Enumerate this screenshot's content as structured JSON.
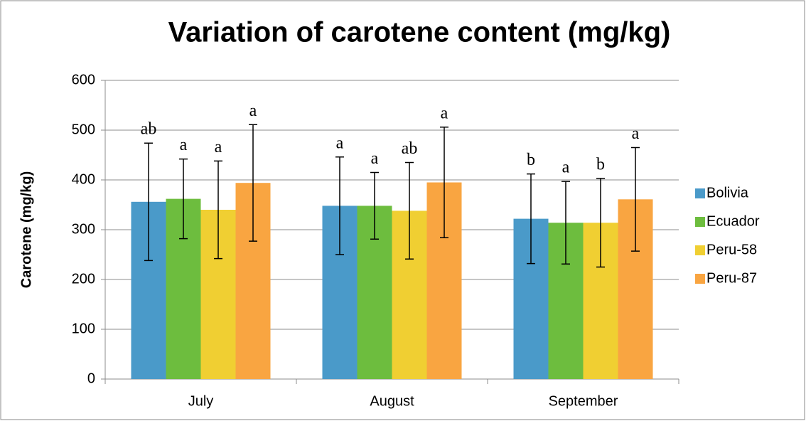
{
  "chart_data": {
    "type": "bar",
    "title": "Variation of carotene content (mg/kg)",
    "y_label": "Carotene (mg/kg)",
    "categories": [
      "July",
      "August",
      "September"
    ],
    "series": [
      {
        "name": "Bolivia",
        "color": "#4a9ac9",
        "values": [
          356,
          348,
          322
        ],
        "errors": [
          118,
          98,
          90
        ],
        "letters": [
          "ab",
          "a",
          "b"
        ]
      },
      {
        "name": "Ecuador",
        "color": "#6dbd3e",
        "values": [
          362,
          348,
          314
        ],
        "errors": [
          80,
          67,
          83
        ],
        "letters": [
          "a",
          "a",
          "a"
        ]
      },
      {
        "name": "Peru-58",
        "color": "#f0cf32",
        "values": [
          340,
          338,
          314
        ],
        "errors": [
          98,
          97,
          89
        ],
        "letters": [
          "a",
          "ab",
          "b"
        ]
      },
      {
        "name": "Peru-87",
        "color": "#f9a541",
        "values": [
          394,
          395,
          361
        ],
        "errors": [
          117,
          111,
          104
        ],
        "letters": [
          "a",
          "a",
          "a"
        ]
      }
    ],
    "ylim": [
      0,
      600
    ],
    "yticks": [
      0,
      100,
      200,
      300,
      400,
      500,
      600
    ],
    "grid": true,
    "legend": "right"
  }
}
